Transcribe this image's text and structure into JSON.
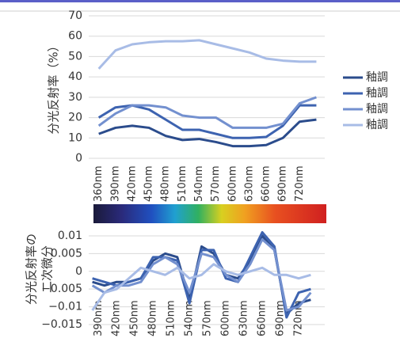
{
  "chart_data": [
    {
      "type": "line",
      "y_label": "分光反射率（%）",
      "x": [
        360,
        390,
        420,
        450,
        480,
        510,
        540,
        570,
        600,
        630,
        660,
        690,
        720,
        750
      ],
      "xlim": [
        342,
        765
      ],
      "xticks": [
        {
          "value": 360,
          "label": "360nm"
        },
        {
          "value": 390,
          "label": "390nm"
        },
        {
          "value": 420,
          "label": "420nm"
        },
        {
          "value": 450,
          "label": "450nm"
        },
        {
          "value": 480,
          "label": "480nm"
        },
        {
          "value": 510,
          "label": "510nm"
        },
        {
          "value": 540,
          "label": "540nm"
        },
        {
          "value": 570,
          "label": "570nm"
        },
        {
          "value": 600,
          "label": "600nm"
        },
        {
          "value": 630,
          "label": "630nm"
        },
        {
          "value": 660,
          "label": "660nm"
        },
        {
          "value": 690,
          "label": "690nm"
        },
        {
          "value": 720,
          "label": "720nm"
        }
      ],
      "ylim": [
        0,
        70
      ],
      "yticks": [
        0,
        10,
        20,
        30,
        40,
        50,
        60,
        70
      ],
      "grid": true,
      "legend": "right",
      "series": [
        {
          "name": "釉調",
          "color": "#2b4c8c",
          "values": [
            12,
            15,
            16,
            15,
            11,
            9,
            9.5,
            8,
            6,
            6,
            6.5,
            10,
            18,
            19
          ]
        },
        {
          "name": "釉調",
          "color": "#3d63b0",
          "values": [
            20,
            25,
            26,
            24,
            19,
            14,
            14,
            12,
            10,
            10,
            10.5,
            16,
            26,
            26
          ]
        },
        {
          "name": "釉調",
          "color": "#7390cf",
          "values": [
            16,
            22,
            26,
            26,
            25,
            21,
            20,
            20,
            15,
            15,
            15,
            17,
            27,
            30
          ]
        },
        {
          "name": "釉調",
          "color": "#a8bce6",
          "values": [
            44,
            53,
            56,
            57,
            57.5,
            57.5,
            58,
            56,
            54,
            52,
            49,
            48,
            47.5,
            47.5
          ]
        }
      ]
    },
    {
      "type": "line",
      "y_label": [
        "分光反射率の",
        "二次微分"
      ],
      "x": [
        380,
        400,
        420,
        440,
        460,
        480,
        500,
        520,
        540,
        560,
        580,
        600,
        620,
        640,
        660,
        680,
        700,
        720,
        740
      ],
      "xlim": [
        374,
        763
      ],
      "xticks": [
        {
          "value": 390,
          "label": "390nm"
        },
        {
          "value": 420,
          "label": "420nm"
        },
        {
          "value": 450,
          "label": "450nm"
        },
        {
          "value": 480,
          "label": "480nm"
        },
        {
          "value": 510,
          "label": "510nm"
        },
        {
          "value": 540,
          "label": "540nm"
        },
        {
          "value": 570,
          "label": "570nm"
        },
        {
          "value": 600,
          "label": "600nm"
        },
        {
          "value": 630,
          "label": "630nm"
        },
        {
          "value": 660,
          "label": "660nm"
        },
        {
          "value": 690,
          "label": "690nm"
        },
        {
          "value": 720,
          "label": "720nm"
        }
      ],
      "ylim": [
        -0.015,
        0.012
      ],
      "yticks": [
        {
          "value": -0.015,
          "label": "−0.015"
        },
        {
          "value": -0.01,
          "label": "−0.01"
        },
        {
          "value": -0.005,
          "label": "−0.005"
        },
        0,
        0.005,
        0.01
      ],
      "grid": true,
      "series": [
        {
          "color": "#2b4c8c",
          "values": [
            -0.003,
            -0.004,
            -0.003,
            -0.003,
            -0.002,
            0.003,
            0.005,
            0.004,
            -0.008,
            0.007,
            0.005,
            -0.001,
            -0.002,
            0.003,
            0.01,
            0.006,
            -0.012,
            -0.009,
            -0.008
          ]
        },
        {
          "color": "#3d63b0",
          "values": [
            -0.002,
            -0.003,
            -0.004,
            -0.003,
            -0.002,
            0.004,
            0.004,
            0.003,
            -0.009,
            0.006,
            0.006,
            -0.002,
            -0.003,
            0.004,
            0.011,
            0.007,
            -0.013,
            -0.006,
            -0.005
          ]
        },
        {
          "color": "#7390cf",
          "values": [
            -0.004,
            -0.006,
            -0.004,
            -0.004,
            -0.003,
            0.002,
            0.004,
            0.002,
            -0.006,
            0.005,
            0.004,
            -0.001,
            -0.003,
            0.002,
            0.009,
            0.006,
            -0.011,
            -0.01,
            -0.006
          ]
        },
        {
          "color": "#a8bce6",
          "values": [
            -0.011,
            -0.006,
            -0.005,
            -0.002,
            0.001,
            0,
            -0.001,
            0.001,
            -0.002,
            -0.001,
            0.002,
            0,
            -0.001,
            0,
            0.001,
            -0.001,
            -0.001,
            -0.002,
            -0.001
          ]
        }
      ]
    }
  ]
}
